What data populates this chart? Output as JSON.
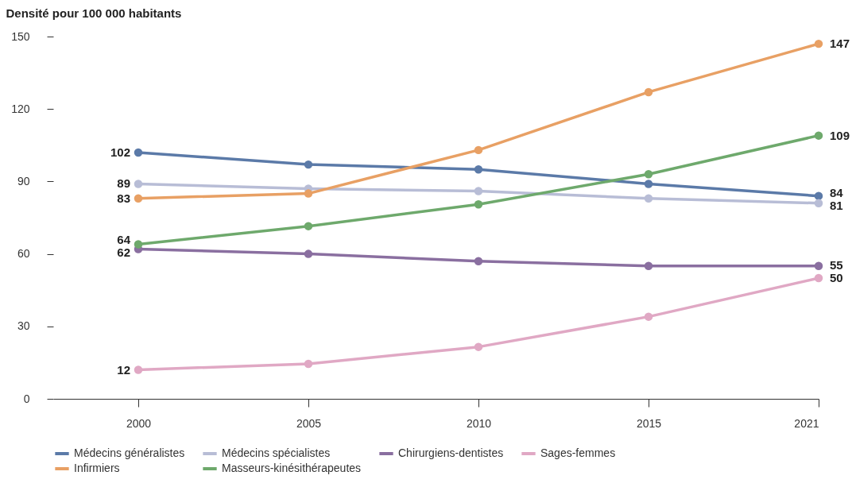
{
  "chart_data": {
    "type": "line",
    "ylabel": "Densité pour 100 000 habitants",
    "categories": [
      "2000",
      "2005",
      "2010",
      "2015",
      "2021"
    ],
    "ylim": [
      0,
      150
    ],
    "yticks": [
      0,
      30,
      60,
      90,
      120,
      150
    ],
    "grid": false,
    "legend": "bottom",
    "marker": "circle",
    "line_style": "solid",
    "series": [
      {
        "name": "Médecins généralistes",
        "color": "#5b7aa8",
        "values": [
          102,
          97,
          95,
          89,
          84
        ],
        "value_labels": [
          "102",
          null,
          null,
          null,
          "84"
        ]
      },
      {
        "name": "Médecins spécialistes",
        "color": "#b8bdd6",
        "values": [
          89,
          87,
          86,
          83,
          81
        ],
        "value_labels": [
          "89",
          null,
          null,
          null,
          "81"
        ]
      },
      {
        "name": "Chirurgiens-dentistes",
        "color": "#8a6fa0",
        "values": [
          62,
          60,
          57,
          55,
          55
        ],
        "value_labels": [
          "62",
          null,
          null,
          null,
          "55"
        ]
      },
      {
        "name": "Sages-femmes",
        "color": "#e0a8c4",
        "values": [
          12,
          14.5,
          21.5,
          34,
          50
        ],
        "value_labels": [
          "12",
          null,
          null,
          null,
          "50"
        ]
      },
      {
        "name": "Infirmiers",
        "color": "#e8a064",
        "values": [
          83,
          85,
          103,
          127,
          147
        ],
        "value_labels": [
          "83",
          null,
          null,
          null,
          "147"
        ]
      },
      {
        "name": "Masseurs-kinésithérapeutes",
        "color": "#6ea96c",
        "values": [
          64,
          71.5,
          80.5,
          93,
          109
        ],
        "value_labels": [
          "64",
          null,
          null,
          null,
          "109"
        ]
      }
    ]
  }
}
